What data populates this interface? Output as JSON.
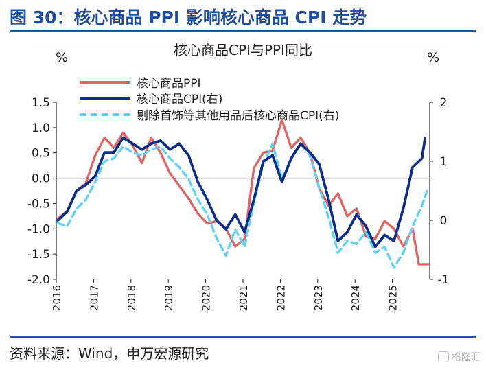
{
  "figure": {
    "title": "图 30：核心商品 PPI 影响核心商品 CPI 走势",
    "source": "资料来源：Wind，申万宏源研究",
    "watermark": "格隆汇"
  },
  "colors": {
    "ppi": "#e06666",
    "cpi": "#0b2e8c",
    "cpi_ex": "#5fd3f3",
    "title": "#1f4e9c"
  },
  "chart_data": {
    "type": "line",
    "title": "核心商品CPI与PPI同比",
    "ylabel_left": "%",
    "ylabel_right": "%",
    "xlim": [
      "2016-01",
      "2025-12"
    ],
    "ylim_left": [
      -2.0,
      1.5
    ],
    "ylim_right": [
      -1,
      2
    ],
    "yticks_left": [
      "1.5",
      "1.0",
      "0.5",
      "0.0",
      "-0.5",
      "-1.0",
      "-1.5",
      "-2.0"
    ],
    "yticks_right": [
      "2",
      "1",
      "0",
      "-1"
    ],
    "xticks": [
      "2016",
      "2017",
      "2018",
      "2019",
      "2020",
      "2021",
      "2022",
      "2023",
      "2024",
      "2025"
    ],
    "legend_position": "top-left",
    "grid": false,
    "series": [
      {
        "name": "核心商品PPI",
        "axis": "left",
        "points": [
          [
            "2016-01",
            -0.8
          ],
          [
            "2016-04",
            -0.65
          ],
          [
            "2016-07",
            -0.25
          ],
          [
            "2016-10",
            -0.1
          ],
          [
            "2017-01",
            0.45
          ],
          [
            "2017-04",
            0.8
          ],
          [
            "2017-07",
            0.6
          ],
          [
            "2017-10",
            0.9
          ],
          [
            "2018-01",
            0.65
          ],
          [
            "2018-04",
            0.3
          ],
          [
            "2018-07",
            0.8
          ],
          [
            "2018-10",
            0.5
          ],
          [
            "2019-01",
            0.1
          ],
          [
            "2019-04",
            -0.15
          ],
          [
            "2019-07",
            -0.4
          ],
          [
            "2019-10",
            -0.7
          ],
          [
            "2020-01",
            -0.9
          ],
          [
            "2020-04",
            -0.85
          ],
          [
            "2020-07",
            -1.0
          ],
          [
            "2020-10",
            -1.35
          ],
          [
            "2021-01",
            -1.2
          ],
          [
            "2021-04",
            0.2
          ],
          [
            "2021-07",
            0.5
          ],
          [
            "2021-10",
            0.55
          ],
          [
            "2022-01",
            1.15
          ],
          [
            "2022-04",
            0.6
          ],
          [
            "2022-07",
            0.8
          ],
          [
            "2022-10",
            0.5
          ],
          [
            "2023-01",
            -0.2
          ],
          [
            "2023-04",
            -0.55
          ],
          [
            "2023-07",
            -0.3
          ],
          [
            "2023-10",
            -0.75
          ],
          [
            "2024-01",
            -0.6
          ],
          [
            "2024-04",
            -1.15
          ],
          [
            "2024-07",
            -1.2
          ],
          [
            "2024-10",
            -0.85
          ],
          [
            "2025-01",
            -1.0
          ],
          [
            "2025-04",
            -1.35
          ],
          [
            "2025-07",
            -1.0
          ],
          [
            "2025-09",
            -1.7
          ],
          [
            "2025-12",
            -1.7
          ]
        ]
      },
      {
        "name": "核心商品CPI(右)",
        "axis": "right",
        "points": [
          [
            "2016-01",
            0.0
          ],
          [
            "2016-04",
            0.15
          ],
          [
            "2016-07",
            0.5
          ],
          [
            "2016-10",
            0.6
          ],
          [
            "2017-01",
            0.75
          ],
          [
            "2017-04",
            1.15
          ],
          [
            "2017-07",
            1.15
          ],
          [
            "2017-10",
            1.4
          ],
          [
            "2018-01",
            1.3
          ],
          [
            "2018-04",
            1.2
          ],
          [
            "2018-07",
            1.3
          ],
          [
            "2018-10",
            1.35
          ],
          [
            "2019-01",
            1.2
          ],
          [
            "2019-04",
            1.3
          ],
          [
            "2019-07",
            1.1
          ],
          [
            "2019-10",
            0.65
          ],
          [
            "2020-01",
            0.35
          ],
          [
            "2020-04",
            0.0
          ],
          [
            "2020-07",
            -0.15
          ],
          [
            "2020-10",
            0.1
          ],
          [
            "2021-01",
            -0.2
          ],
          [
            "2021-04",
            0.35
          ],
          [
            "2021-07",
            1.0
          ],
          [
            "2021-10",
            1.1
          ],
          [
            "2022-01",
            0.65
          ],
          [
            "2022-04",
            1.05
          ],
          [
            "2022-07",
            1.3
          ],
          [
            "2022-10",
            1.15
          ],
          [
            "2023-01",
            0.95
          ],
          [
            "2023-04",
            0.35
          ],
          [
            "2023-07",
            -0.35
          ],
          [
            "2023-10",
            -0.2
          ],
          [
            "2024-01",
            0.1
          ],
          [
            "2024-04",
            -0.1
          ],
          [
            "2024-07",
            -0.45
          ],
          [
            "2024-10",
            -0.25
          ],
          [
            "2025-01",
            -0.35
          ],
          [
            "2025-04",
            0.2
          ],
          [
            "2025-07",
            0.9
          ],
          [
            "2025-10",
            1.05
          ],
          [
            "2025-11",
            1.4
          ]
        ]
      },
      {
        "name": "剔除首饰等其他用品后核心商品CPI(右)",
        "axis": "right",
        "points": [
          [
            "2016-01",
            -0.05
          ],
          [
            "2016-04",
            -0.1
          ],
          [
            "2016-07",
            0.2
          ],
          [
            "2016-10",
            0.35
          ],
          [
            "2017-01",
            0.65
          ],
          [
            "2017-04",
            1.0
          ],
          [
            "2017-07",
            1.05
          ],
          [
            "2017-10",
            1.25
          ],
          [
            "2018-01",
            1.15
          ],
          [
            "2018-04",
            1.1
          ],
          [
            "2018-07",
            1.2
          ],
          [
            "2018-10",
            1.25
          ],
          [
            "2019-01",
            1.05
          ],
          [
            "2019-04",
            0.9
          ],
          [
            "2019-07",
            0.7
          ],
          [
            "2019-10",
            0.35
          ],
          [
            "2020-01",
            0.1
          ],
          [
            "2020-04",
            -0.3
          ],
          [
            "2020-07",
            -0.6
          ],
          [
            "2020-10",
            -0.15
          ],
          [
            "2021-01",
            -0.45
          ],
          [
            "2021-04",
            0.3
          ],
          [
            "2021-07",
            0.95
          ],
          [
            "2021-10",
            1.3
          ],
          [
            "2022-01",
            0.7
          ],
          [
            "2022-04",
            1.05
          ],
          [
            "2022-07",
            1.3
          ],
          [
            "2022-10",
            1.1
          ],
          [
            "2023-01",
            0.55
          ],
          [
            "2023-04",
            0.05
          ],
          [
            "2023-07",
            -0.55
          ],
          [
            "2023-10",
            -0.35
          ],
          [
            "2024-01",
            -0.4
          ],
          [
            "2024-04",
            -0.2
          ],
          [
            "2024-07",
            -0.55
          ],
          [
            "2024-10",
            -0.45
          ],
          [
            "2025-01",
            -0.8
          ],
          [
            "2025-04",
            -0.55
          ],
          [
            "2025-07",
            -0.1
          ],
          [
            "2025-10",
            0.25
          ],
          [
            "2025-12",
            0.55
          ]
        ]
      }
    ]
  }
}
